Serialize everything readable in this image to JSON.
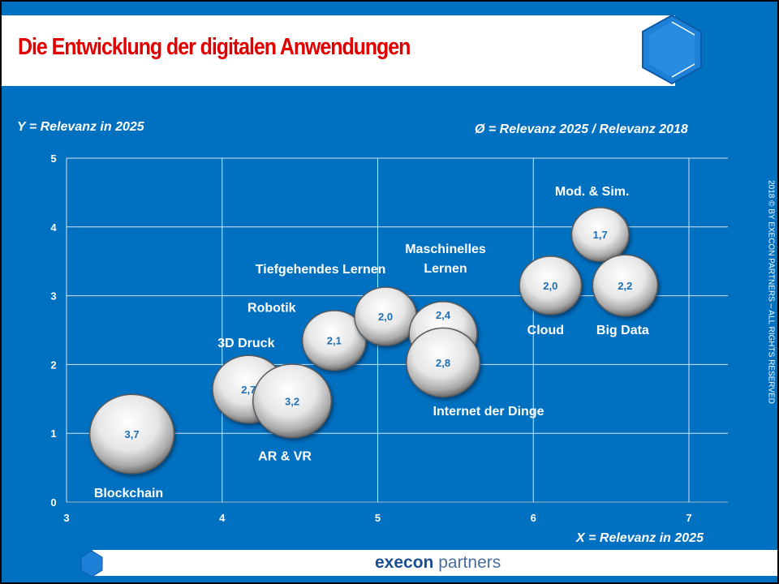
{
  "title": "Die Entwicklung der digitalen Anwendungen",
  "y_axis_note": "Y = Relevanz in 2025",
  "bubble_note": "Ø = Relevanz 2025 /  Relevanz 2018",
  "x_axis_note": "X = Relevanz in 2025",
  "copyright": "2018 © BY EXECON PARTNERS – ALL RIGHTS RESERVED",
  "logo": {
    "bold": "execon",
    "light": " partners"
  },
  "colors": {
    "background": "#0070C0",
    "title": "#E00000",
    "bubble_label": "#1F6FB5"
  },
  "chart_data": {
    "type": "scatter",
    "subtype": "bubble",
    "xlabel": "X = Relevanz in 2025",
    "ylabel": "Y = Relevanz in 2025",
    "size_label": "Ø = Relevanz 2025 / Relevanz 2018",
    "xlim": [
      3,
      7.25
    ],
    "ylim": [
      0,
      5
    ],
    "xticks": [
      "3",
      "4",
      "5",
      "6",
      "7"
    ],
    "yticks": [
      "0",
      "1",
      "2",
      "3",
      "4",
      "5"
    ],
    "grid": true,
    "points": [
      {
        "name": "Blockchain",
        "x": 3.42,
        "y": 0.99,
        "size": 3.7,
        "size_label": "3,7"
      },
      {
        "name": "3D Druck",
        "x": 4.17,
        "y": 1.64,
        "size": 2.7,
        "size_label": "2,7"
      },
      {
        "name": "AR & VR",
        "x": 4.45,
        "y": 1.47,
        "size": 3.2,
        "size_label": "3,2"
      },
      {
        "name": "Robotik",
        "x": 4.72,
        "y": 2.35,
        "size": 2.1,
        "size_label": "2,1"
      },
      {
        "name": "Tiefgehendes Lernen",
        "x": 5.05,
        "y": 2.7,
        "size": 2.0,
        "size_label": "2,0"
      },
      {
        "name": "Maschinelles Lernen",
        "x": 5.42,
        "y": 2.45,
        "size": 2.4,
        "size_label": "2,4"
      },
      {
        "name": "Internet der Dinge",
        "x": 5.42,
        "y": 2.03,
        "size": 2.8,
        "size_label": "2,8"
      },
      {
        "name": "Cloud",
        "x": 6.11,
        "y": 3.15,
        "size": 2.0,
        "size_label": "2,0"
      },
      {
        "name": "Mod. & Sim.",
        "x": 6.43,
        "y": 3.89,
        "size": 1.7,
        "size_label": "1,7"
      },
      {
        "name": "Big Data",
        "x": 6.59,
        "y": 3.15,
        "size": 2.2,
        "size_label": "2,2"
      }
    ]
  }
}
